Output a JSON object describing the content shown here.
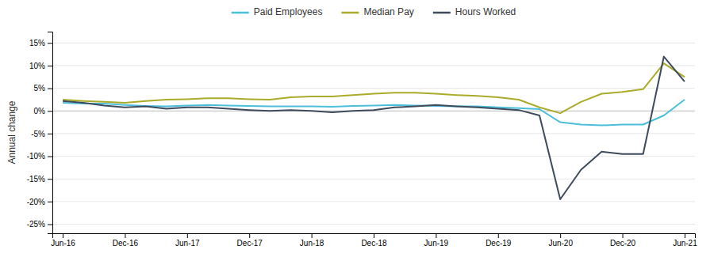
{
  "chart_data": {
    "type": "line",
    "y_label": "Annual change",
    "categories": [
      "Jun-16",
      null,
      null,
      "Dec-16",
      null,
      null,
      "Jun-17",
      null,
      null,
      "Dec-17",
      null,
      null,
      "Jun-18",
      null,
      null,
      "Dec-18",
      null,
      null,
      "Jun-19",
      null,
      null,
      "Dec-19",
      null,
      null,
      "Jun-20",
      null,
      null,
      "Dec-20",
      null,
      null,
      "Jun-21"
    ],
    "series": [
      {
        "name": "Paid Employees",
        "color": "#4BBFDA",
        "values": [
          0.018,
          0.016,
          0.016,
          0.013,
          0.011,
          0.01,
          0.012,
          0.013,
          0.012,
          0.011,
          0.01,
          0.01,
          0.01,
          0.009,
          0.011,
          0.012,
          0.013,
          0.012,
          0.011,
          0.01,
          0.01,
          0.008,
          0.006,
          0.004,
          -0.025,
          -0.03,
          -0.032,
          -0.03,
          -0.03,
          -0.01,
          0.025
        ]
      },
      {
        "name": "Median Pay",
        "color": "#AAAB2A",
        "values": [
          0.025,
          0.022,
          0.02,
          0.018,
          0.022,
          0.025,
          0.026,
          0.028,
          0.028,
          0.026,
          0.025,
          0.03,
          0.032,
          0.032,
          0.035,
          0.038,
          0.04,
          0.04,
          0.038,
          0.035,
          0.033,
          0.03,
          0.025,
          0.008,
          -0.005,
          0.02,
          0.038,
          0.042,
          0.048,
          0.105,
          0.075
        ]
      },
      {
        "name": "Hours Worked",
        "color": "#3D4B5C",
        "values": [
          0.022,
          0.018,
          0.012,
          0.008,
          0.01,
          0.005,
          0.008,
          0.008,
          0.005,
          0.002,
          0.0,
          0.002,
          0.0,
          -0.003,
          0.0,
          0.002,
          0.008,
          0.01,
          0.013,
          0.01,
          0.008,
          0.005,
          0.002,
          -0.01,
          -0.195,
          -0.13,
          -0.09,
          -0.095,
          -0.095,
          0.12,
          0.065
        ]
      }
    ],
    "ylim": [
      -0.27,
      0.175
    ],
    "yticks": [
      {
        "value": -0.25,
        "label": "-25%"
      },
      {
        "value": -0.2,
        "label": "-20%"
      },
      {
        "value": -0.15,
        "label": "-15%"
      },
      {
        "value": -0.1,
        "label": "-10%"
      },
      {
        "value": -0.05,
        "label": "-5%"
      },
      {
        "value": 0.0,
        "label": "0%"
      },
      {
        "value": 0.05,
        "label": "5%"
      },
      {
        "value": 0.1,
        "label": "10%"
      },
      {
        "value": 0.15,
        "label": "15%"
      }
    ],
    "grid": true,
    "legend": "top"
  }
}
